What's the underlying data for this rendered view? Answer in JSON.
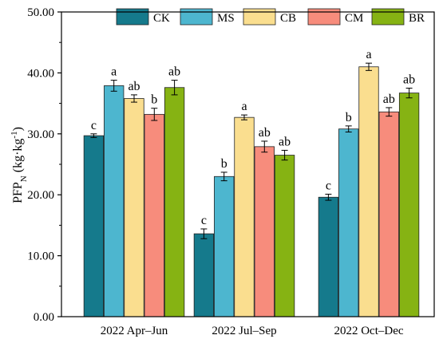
{
  "chart_data": {
    "type": "bar",
    "title": "",
    "xlabel": "",
    "ylabel": "PFPN (kg·kg-1)",
    "ylabel_parts": {
      "main": "PFP",
      "sub": "N",
      "unit_open": " (kg·kg",
      "unit_sup": "-1",
      "unit_close": ")"
    },
    "ylim": [
      0,
      50
    ],
    "yticks": [
      0,
      10,
      20,
      30,
      40,
      50
    ],
    "ytick_labels": [
      "0.00",
      "10.00",
      "20.00",
      "30.00",
      "40.00",
      "50.00"
    ],
    "categories": [
      "2022 Apr–Jun",
      "2022 Jul–Sep",
      "2022 Oct–Dec"
    ],
    "legend_position": "top-center",
    "grid": false,
    "series": [
      {
        "name": "CK",
        "color": "#157A8C",
        "values": [
          29.7,
          13.6,
          19.6
        ],
        "errors": [
          0.3,
          0.8,
          0.5
        ],
        "labels": [
          "c",
          "c",
          "c"
        ]
      },
      {
        "name": "MS",
        "color": "#4DB6CF",
        "values": [
          37.9,
          23.0,
          30.8
        ],
        "errors": [
          0.9,
          0.7,
          0.5
        ],
        "labels": [
          "a",
          "b",
          "b"
        ]
      },
      {
        "name": "CB",
        "color": "#FADE8F",
        "values": [
          35.8,
          32.7,
          41.0
        ],
        "errors": [
          0.6,
          0.4,
          0.6
        ],
        "labels": [
          "ab",
          "a",
          "a"
        ]
      },
      {
        "name": "CM",
        "color": "#F78C7C",
        "values": [
          33.2,
          27.9,
          33.6
        ],
        "errors": [
          1.0,
          0.9,
          0.7
        ],
        "labels": [
          "b",
          "ab",
          "ab"
        ]
      },
      {
        "name": "BR",
        "color": "#86B313",
        "values": [
          37.6,
          26.5,
          36.7
        ],
        "errors": [
          1.2,
          0.8,
          0.8
        ],
        "labels": [
          "ab",
          "ab",
          "ab"
        ]
      }
    ]
  }
}
